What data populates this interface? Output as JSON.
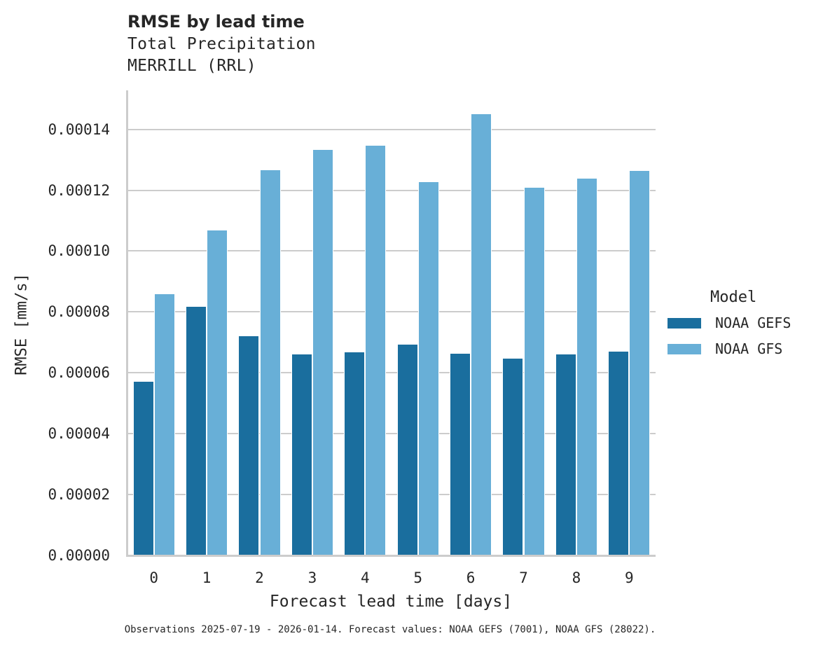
{
  "header": {
    "title": "RMSE by lead time",
    "subtitle_line1": "Total Precipitation",
    "subtitle_line2": "MERRILL (RRL)"
  },
  "axes": {
    "xlabel": "Forecast lead time [days]",
    "ylabel": "RMSE [mm/s]",
    "yticks": [
      "0.00000",
      "0.00002",
      "0.00004",
      "0.00006",
      "0.00008",
      "0.00010",
      "0.00012",
      "0.00014"
    ],
    "xticks": [
      "0",
      "1",
      "2",
      "3",
      "4",
      "5",
      "6",
      "7",
      "8",
      "9"
    ]
  },
  "legend": {
    "title": "Model",
    "items": [
      {
        "label": "NOAA GEFS",
        "color": "#1a6e9e"
      },
      {
        "label": "NOAA GFS",
        "color": "#68afd7"
      }
    ]
  },
  "footnote": "Observations 2025-07-19 - 2026-01-14. Forecast values: NOAA GEFS (7001), NOAA GFS (28022).",
  "chart_data": {
    "type": "bar",
    "title": "RMSE by lead time",
    "subtitle": "Total Precipitation — MERRILL (RRL)",
    "xlabel": "Forecast lead time [days]",
    "ylabel": "RMSE [mm/s]",
    "categories": [
      "0",
      "1",
      "2",
      "3",
      "4",
      "5",
      "6",
      "7",
      "8",
      "9"
    ],
    "series": [
      {
        "name": "NOAA GEFS",
        "color": "#1a6e9e",
        "values": [
          5.7e-05,
          8.17e-05,
          7.2e-05,
          6.61e-05,
          6.67e-05,
          6.93e-05,
          6.63e-05,
          6.47e-05,
          6.61e-05,
          6.7e-05
        ]
      },
      {
        "name": "NOAA GFS",
        "color": "#68afd7",
        "values": [
          8.58e-05,
          0.0001068,
          0.0001266,
          0.0001333,
          0.0001346,
          0.0001227,
          0.000145,
          0.0001208,
          0.0001238,
          0.0001264
        ]
      }
    ],
    "ylim": [
      0,
      0.0001528
    ],
    "yticks": [
      0,
      2e-05,
      4e-05,
      6e-05,
      8e-05,
      0.0001,
      0.00012,
      0.00014
    ],
    "grid": "horizontal",
    "legend_position": "right",
    "legend_title": "Model"
  }
}
